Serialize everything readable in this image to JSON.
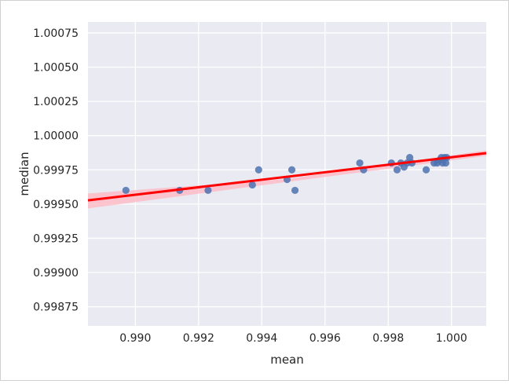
{
  "chart_data": {
    "type": "scatter",
    "title": "",
    "xlabel": "mean",
    "ylabel": "median",
    "xlim": [
      0.9885,
      1.0011
    ],
    "ylim": [
      0.99861,
      1.00083
    ],
    "xticks": [
      0.99,
      0.992,
      0.994,
      0.996,
      0.998,
      1.0
    ],
    "xtick_labels": [
      "0.990",
      "0.992",
      "0.994",
      "0.996",
      "0.998",
      "1.000"
    ],
    "yticks": [
      0.99875,
      0.999,
      0.99925,
      0.9995,
      0.99975,
      1.0,
      1.00025,
      1.0005,
      1.00075
    ],
    "ytick_labels": [
      "0.99875",
      "0.99900",
      "0.99925",
      "0.99950",
      "0.99975",
      "1.00000",
      "1.00025",
      "1.00050",
      "1.00075"
    ],
    "grid": true,
    "background": "#eaeaf2",
    "point_color": "#4c72b0",
    "regression_color": "#ff0000",
    "ci_color": "#ffb6c1",
    "points": [
      {
        "x": 0.9897,
        "y": 0.9996
      },
      {
        "x": 0.9914,
        "y": 0.9996
      },
      {
        "x": 0.9923,
        "y": 0.9996
      },
      {
        "x": 0.9937,
        "y": 0.99964
      },
      {
        "x": 0.9939,
        "y": 0.99975
      },
      {
        "x": 0.9948,
        "y": 0.99968
      },
      {
        "x": 0.99495,
        "y": 0.99975
      },
      {
        "x": 0.99505,
        "y": 0.9996
      },
      {
        "x": 0.9971,
        "y": 0.9998
      },
      {
        "x": 0.99722,
        "y": 0.99975
      },
      {
        "x": 0.9981,
        "y": 0.9998
      },
      {
        "x": 0.99828,
        "y": 0.99975
      },
      {
        "x": 0.9984,
        "y": 0.9998
      },
      {
        "x": 0.9985,
        "y": 0.99977
      },
      {
        "x": 0.9986,
        "y": 0.9998
      },
      {
        "x": 0.99868,
        "y": 0.99984
      },
      {
        "x": 0.99875,
        "y": 0.9998
      },
      {
        "x": 0.9992,
        "y": 0.99975
      },
      {
        "x": 0.99945,
        "y": 0.9998
      },
      {
        "x": 0.99955,
        "y": 0.9998
      },
      {
        "x": 0.99962,
        "y": 0.99982
      },
      {
        "x": 0.99968,
        "y": 0.99984
      },
      {
        "x": 0.99972,
        "y": 0.9998
      },
      {
        "x": 0.99978,
        "y": 0.99984
      },
      {
        "x": 0.99982,
        "y": 0.9998
      },
      {
        "x": 0.99985,
        "y": 0.99984
      }
    ],
    "regression": {
      "start": {
        "x": 0.9885,
        "y": 0.999527
      },
      "end": {
        "x": 1.0011,
        "y": 0.999872
      },
      "ci_start": [
        0.999468,
        0.999577
      ],
      "ci_mid": [
        0.999662,
        0.999683
      ],
      "ci_end": [
        0.999852,
        0.999892
      ]
    }
  }
}
